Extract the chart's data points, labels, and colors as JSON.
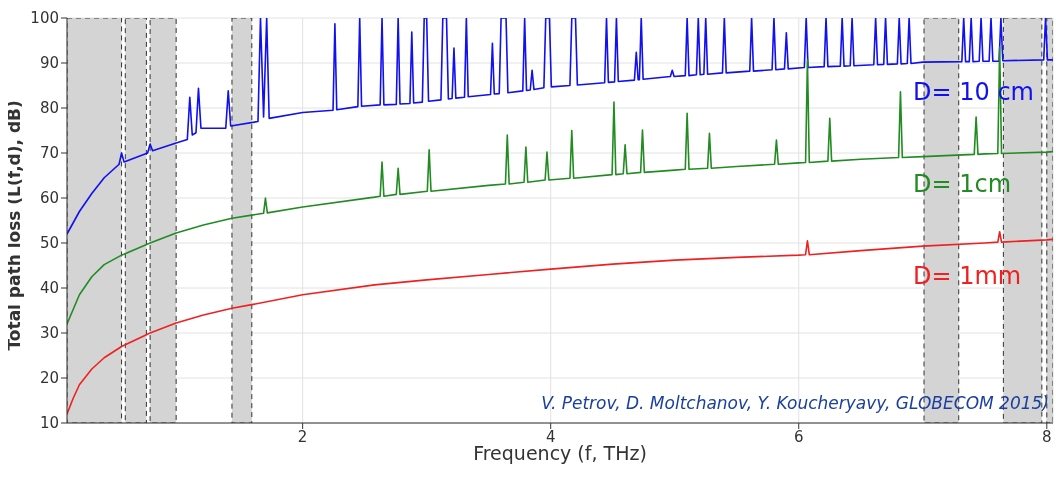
{
  "chart_data": {
    "type": "line",
    "xlabel": "Frequency (f, THz)",
    "ylabel": "Total path loss (L(f,d), dB)",
    "xlim": [
      0.1,
      8.05
    ],
    "ylim": [
      10,
      100
    ],
    "xticks": [
      2,
      4,
      6,
      8
    ],
    "yticks": [
      10,
      20,
      30,
      40,
      50,
      60,
      70,
      80,
      90,
      100
    ],
    "grid": true,
    "legend": false,
    "marker": "none",
    "line_style": "solid",
    "annotations": [
      "V. Petrov, D. Moltchanov, Y. Koucheryavy, GLOBECOM 2015)"
    ],
    "bands": [
      {
        "axis": "x",
        "from": 0.1,
        "to": 0.54,
        "color": "#d4d4d4"
      },
      {
        "axis": "x",
        "from": 0.57,
        "to": 0.74,
        "color": "#d4d4d4"
      },
      {
        "axis": "x",
        "from": 0.77,
        "to": 0.98,
        "color": "#d4d4d4"
      },
      {
        "axis": "x",
        "from": 1.43,
        "to": 1.59,
        "color": "#d4d4d4"
      },
      {
        "axis": "x",
        "from": 7.01,
        "to": 7.29,
        "color": "#d4d4d4"
      },
      {
        "axis": "x",
        "from": 7.65,
        "to": 7.96,
        "color": "#d4d4d4"
      },
      {
        "axis": "x",
        "from": 8.0,
        "to": 8.05,
        "color": "#d4d4d4"
      }
    ],
    "series": [
      {
        "name": "D= 10 cm",
        "color": "#1010f0",
        "x": [
          0.1,
          0.2,
          0.3,
          0.4,
          0.52,
          0.54,
          0.56,
          0.75,
          0.77,
          0.79,
          0.98,
          1.07,
          1.09,
          1.11,
          1.14,
          1.16,
          1.18,
          1.38,
          1.4,
          1.42,
          1.64,
          1.66,
          1.685,
          1.71,
          1.73,
          2.0,
          2.245,
          2.26,
          2.275,
          2.445,
          2.46,
          2.475,
          2.625,
          2.64,
          2.655,
          2.755,
          2.77,
          2.785,
          2.865,
          2.88,
          2.895,
          2.965,
          2.98,
          3.0,
          3.015,
          3.115,
          3.13,
          3.16,
          3.175,
          3.205,
          3.22,
          3.235,
          3.305,
          3.32,
          3.335,
          3.515,
          3.53,
          3.545,
          3.585,
          3.6,
          3.64,
          3.655,
          3.775,
          3.79,
          3.805,
          3.835,
          3.85,
          3.865,
          3.945,
          3.96,
          3.99,
          4.005,
          4.155,
          4.17,
          4.2,
          4.215,
          4.435,
          4.45,
          4.465,
          4.515,
          4.53,
          4.545,
          4.675,
          4.69,
          4.705,
          4.715,
          4.73,
          4.745,
          4.965,
          4.98,
          4.995,
          5.085,
          5.1,
          5.115,
          5.175,
          5.19,
          5.205,
          5.235,
          5.25,
          5.265,
          5.385,
          5.4,
          5.415,
          5.605,
          5.62,
          5.635,
          5.785,
          5.8,
          5.815,
          5.885,
          5.9,
          5.915,
          6.045,
          6.06,
          6.075,
          6.205,
          6.22,
          6.235,
          6.335,
          6.35,
          6.365,
          6.415,
          6.43,
          6.445,
          6.605,
          6.62,
          6.635,
          6.685,
          6.7,
          6.715,
          6.795,
          6.81,
          6.825,
          6.875,
          6.89,
          6.905,
          7.0,
          7.315,
          7.33,
          7.345,
          7.375,
          7.39,
          7.405,
          7.455,
          7.47,
          7.485,
          7.535,
          7.55,
          7.565,
          7.615,
          7.63,
          7.645,
          7.975,
          7.99,
          8.005,
          8.05
        ],
        "values": [
          52,
          57,
          61,
          64.5,
          67.5,
          70,
          68,
          70,
          72,
          70.5,
          72.2,
          73,
          82.4,
          74,
          74.5,
          84.4,
          75.5,
          75.5,
          83.8,
          76,
          77,
          100,
          78,
          100,
          77.7,
          79,
          79.5,
          98.7,
          79.6,
          80.3,
          100,
          80.4,
          80.7,
          100,
          80.7,
          80.8,
          100,
          80.9,
          81,
          96.9,
          81.1,
          81.3,
          100,
          100,
          81.5,
          81.8,
          100,
          100,
          82,
          82.1,
          93.3,
          82.2,
          82.4,
          100,
          82.5,
          83,
          94.4,
          83.1,
          83.2,
          100,
          100,
          83.4,
          83.8,
          100,
          83.9,
          84,
          88.4,
          84.1,
          84.5,
          100,
          100,
          84.7,
          85,
          100,
          100,
          85.1,
          85.6,
          100,
          85.7,
          85.8,
          100,
          85.9,
          86.2,
          92.4,
          86.3,
          86.3,
          100,
          86.4,
          87,
          88.4,
          87,
          87.2,
          100,
          87.2,
          87.4,
          100,
          87.4,
          87.5,
          100,
          87.5,
          87.8,
          100,
          87.8,
          88.2,
          100,
          88.2,
          88.5,
          100,
          88.5,
          88.7,
          96.7,
          88.7,
          89,
          100,
          89,
          89.2,
          100,
          89.2,
          89.3,
          100,
          89.3,
          89.4,
          100,
          89.4,
          89.6,
          100,
          89.6,
          89.7,
          100,
          89.7,
          89.8,
          100,
          89.8,
          89.9,
          100,
          89.9,
          90.2,
          90.3,
          100,
          90.3,
          90.3,
          100,
          90.3,
          90.4,
          100,
          90.4,
          90.4,
          100,
          90.4,
          90.4,
          100,
          90.5,
          90.7,
          100,
          90.7,
          90.7
        ]
      },
      {
        "name": "D= 1cm",
        "color": "#228b22",
        "x": [
          0.1,
          0.2,
          0.3,
          0.4,
          0.54,
          0.77,
          0.98,
          1.2,
          1.43,
          1.59,
          1.685,
          1.7,
          1.715,
          2.0,
          2.58,
          2.625,
          2.64,
          2.655,
          2.755,
          2.77,
          2.785,
          3.005,
          3.02,
          3.035,
          3.5,
          3.635,
          3.65,
          3.665,
          3.785,
          3.8,
          3.815,
          3.955,
          3.97,
          3.985,
          4.155,
          4.17,
          4.185,
          4.495,
          4.51,
          4.525,
          4.585,
          4.6,
          4.615,
          4.725,
          4.74,
          4.755,
          5.0,
          5.085,
          5.1,
          5.115,
          5.265,
          5.28,
          5.295,
          5.5,
          5.805,
          5.82,
          5.835,
          6.0,
          6.055,
          6.07,
          6.085,
          6.235,
          6.25,
          6.265,
          6.5,
          6.805,
          6.82,
          6.835,
          7.0,
          7.415,
          7.43,
          7.445,
          7.5,
          7.605,
          7.62,
          7.635,
          8.0,
          8.05
        ],
        "values": [
          32,
          38.5,
          42.5,
          45.2,
          47.3,
          50,
          52.2,
          54,
          55.5,
          56.2,
          56.6,
          60,
          56.7,
          58,
          60.2,
          60.4,
          68,
          60.4,
          60.8,
          66.6,
          60.8,
          61.5,
          70.7,
          61.5,
          62.8,
          63.1,
          74,
          63.1,
          63.5,
          71.3,
          63.5,
          64,
          70.2,
          64,
          64.4,
          75,
          64.4,
          65.2,
          81.3,
          65.2,
          65.4,
          71.8,
          65.4,
          65.7,
          75.1,
          65.7,
          66.2,
          66.4,
          78.8,
          66.4,
          66.6,
          74.4,
          66.6,
          67,
          67.5,
          72.9,
          67.5,
          67.8,
          67.9,
          90.7,
          67.9,
          68.2,
          77.7,
          68.2,
          68.6,
          69,
          83.6,
          69,
          69.2,
          69.7,
          78,
          69.7,
          69.8,
          69.9,
          93.5,
          69.9,
          70.2,
          70.3
        ]
      },
      {
        "name": "D= 1mm",
        "color": "#f02020",
        "x": [
          0.1,
          0.15,
          0.2,
          0.3,
          0.4,
          0.54,
          0.77,
          0.98,
          1.2,
          1.43,
          1.59,
          2.0,
          2.58,
          3.0,
          3.5,
          4.0,
          4.5,
          5.0,
          5.5,
          6.0,
          6.055,
          6.07,
          6.085,
          6.5,
          7.0,
          7.5,
          7.605,
          7.62,
          7.635,
          8.0,
          8.05
        ],
        "values": [
          12,
          15.5,
          18.5,
          22,
          24.5,
          27,
          30,
          32.2,
          34,
          35.5,
          36.3,
          38.5,
          40.7,
          41.8,
          43,
          44.2,
          45.3,
          46.2,
          46.8,
          47.3,
          47.4,
          50.5,
          47.4,
          48.3,
          49.3,
          50,
          50.2,
          52.5,
          50.2,
          50.7,
          50.8
        ]
      }
    ]
  }
}
